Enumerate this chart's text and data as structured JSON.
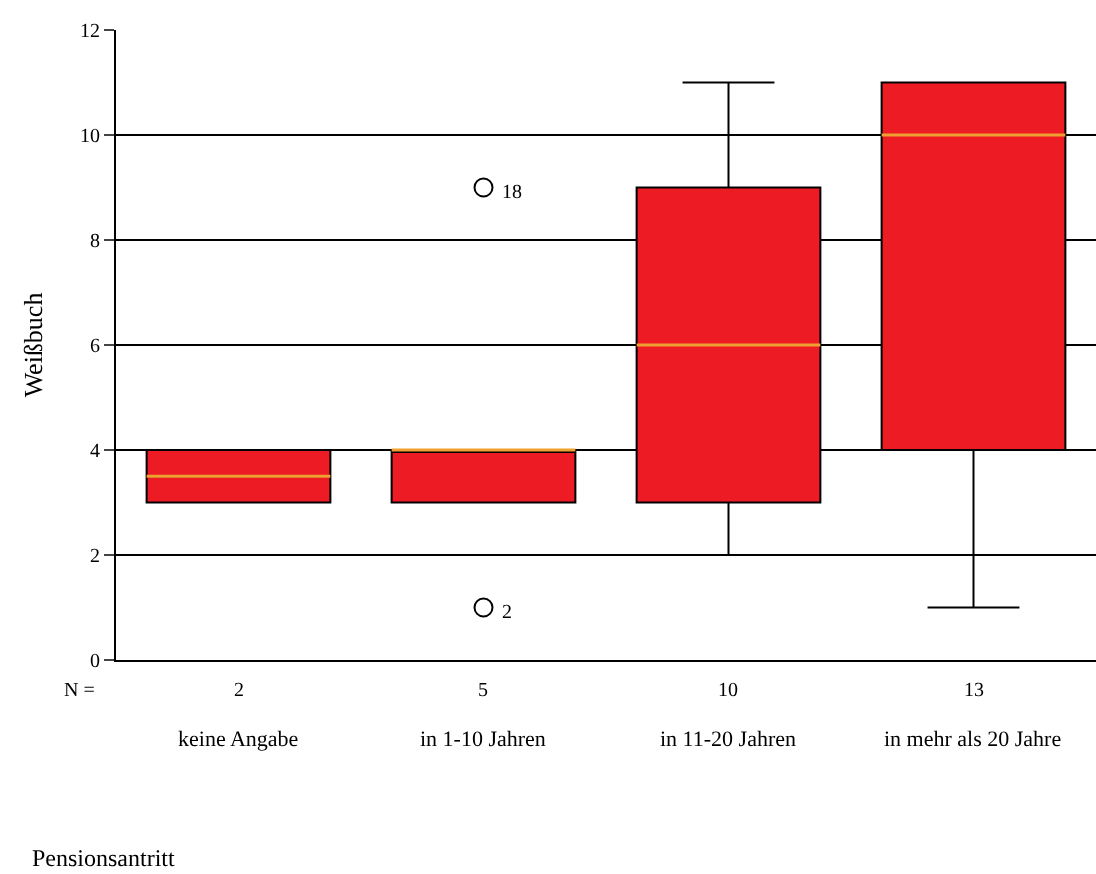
{
  "chart_data": {
    "type": "box",
    "xlabel": "Pensionsantritt",
    "ylabel": "Weißbuch",
    "categories": [
      "keine Angabe",
      "in 1-10 Jahren",
      "in 11-20 Jahren",
      "in mehr als 20 Jahre"
    ],
    "boxes": [
      {
        "low": 3,
        "q1": 3,
        "median": 3.5,
        "q3": 4,
        "high": 4
      },
      {
        "low": 3,
        "q1": 3,
        "median": 4,
        "q3": 4,
        "high": 4,
        "outliers": [
          9,
          1
        ]
      },
      {
        "low": 2,
        "q1": 3,
        "median": 6,
        "q3": 9,
        "high": 11
      },
      {
        "low": 1,
        "q1": 4,
        "median": 10,
        "q3": 11,
        "high": 11
      }
    ],
    "color": "#ed1c24",
    "ylim": [
      0,
      12
    ],
    "yticks": [
      0,
      2,
      4,
      6,
      8,
      10,
      12
    ],
    "grid": "y",
    "annotations": [
      "N =",
      "2",
      "5",
      "10",
      "13",
      "18",
      "2"
    ]
  }
}
